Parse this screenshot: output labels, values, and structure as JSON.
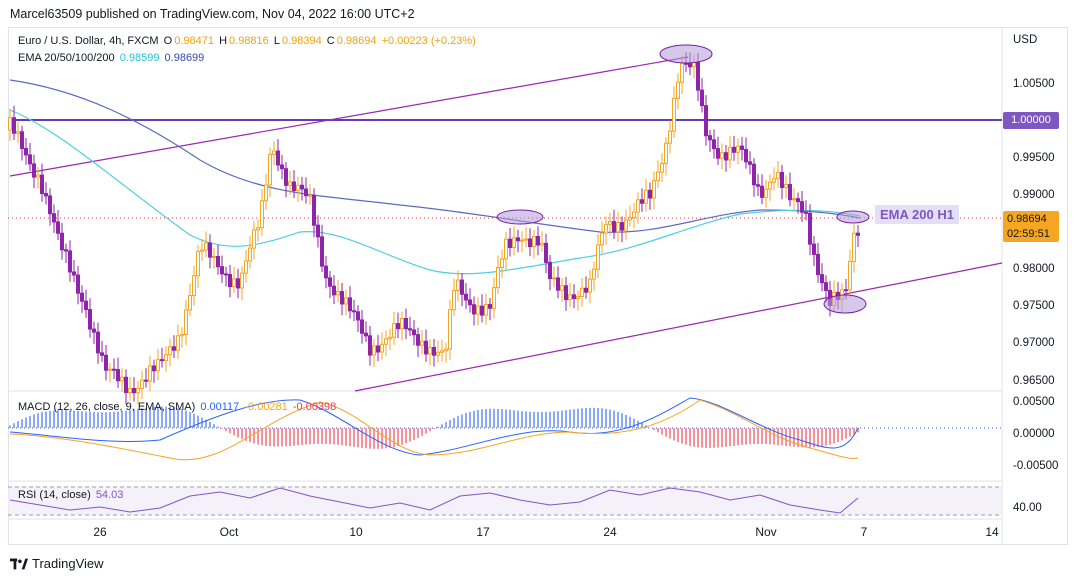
{
  "header": {
    "published": "Marcel63509 published on TradingView.com, Nov 04, 2022 16:00 UTC+2"
  },
  "legend": {
    "symbol": "Euro / U.S. Dollar, 4h, FXCM",
    "open_label": "O",
    "open": "0.98471",
    "high_label": "H",
    "high": "0.98816",
    "low_label": "L",
    "low": "0.98394",
    "close_label": "C",
    "close": "0.98694",
    "change": "+0.00223 (+0.23%)",
    "ema_label": "EMA 20/50/100/200",
    "ema_val1": "0.98599",
    "ema_val2": "0.98699"
  },
  "macd": {
    "label": "MACD (12, 26, close, 9, EMA, SMA)",
    "v1": "0.00117",
    "v2": "-0.00281",
    "v3": "-0.00398"
  },
  "rsi": {
    "label": "RSI (14, close)",
    "value": "54.03"
  },
  "price_axis": {
    "currency": "USD",
    "ticks": [
      "1.00500",
      "0.99500",
      "0.99000",
      "0.98000",
      "0.97500",
      "0.97000",
      "0.96500"
    ],
    "level_tag": "1.00000",
    "last_price": "0.98694",
    "countdown": "02:59:51"
  },
  "macd_axis": [
    "0.00500",
    "0.00000",
    "-0.00500"
  ],
  "rsi_axis": [
    "40.00"
  ],
  "time_axis": [
    "26",
    "Oct",
    "10",
    "17",
    "24",
    "Nov",
    "7",
    "14"
  ],
  "annotation": {
    "ema_text": "EMA 200 H1"
  },
  "brand": {
    "name": "TradingView"
  },
  "colors": {
    "up": "#f5a623",
    "down": "#8e24aa",
    "ema_fast": "#4dd0e1",
    "ema_slow": "#5c6bc0",
    "channel": "#9c27b0",
    "level": "#673ab7",
    "macd_pos": "#2962ff",
    "macd_neg": "#f23645"
  }
}
